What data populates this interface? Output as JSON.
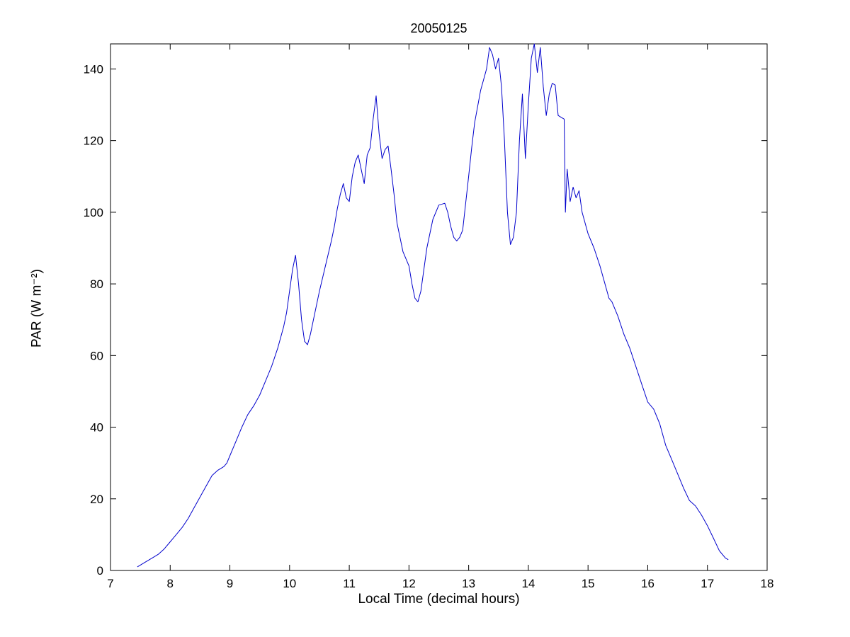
{
  "figure": {
    "background": "#ffffff",
    "axes_color": "#000000"
  },
  "chart_data": {
    "type": "line",
    "title": "20050125",
    "xlabel": "Local Time (decimal hours)",
    "ylabel": "PAR (W m⁻²)",
    "xlim": [
      7,
      18
    ],
    "ylim": [
      0,
      147
    ],
    "xticks": [
      7,
      8,
      9,
      10,
      11,
      12,
      13,
      14,
      15,
      16,
      17,
      18
    ],
    "yticks": [
      0,
      20,
      40,
      60,
      80,
      100,
      120,
      140
    ],
    "grid": false,
    "legend": null,
    "line_color": "#0000CC",
    "x": [
      7.45,
      7.5,
      7.6,
      7.7,
      7.8,
      7.9,
      8.0,
      8.1,
      8.2,
      8.3,
      8.4,
      8.5,
      8.6,
      8.7,
      8.8,
      8.9,
      8.95,
      9.0,
      9.1,
      9.2,
      9.3,
      9.4,
      9.5,
      9.6,
      9.7,
      9.8,
      9.9,
      9.95,
      10.0,
      10.05,
      10.1,
      10.15,
      10.2,
      10.25,
      10.3,
      10.35,
      10.4,
      10.5,
      10.6,
      10.7,
      10.75,
      10.8,
      10.85,
      10.9,
      10.95,
      11.0,
      11.05,
      11.1,
      11.15,
      11.2,
      11.25,
      11.3,
      11.35,
      11.4,
      11.45,
      11.5,
      11.55,
      11.6,
      11.65,
      11.7,
      11.75,
      11.8,
      11.9,
      12.0,
      12.05,
      12.1,
      12.15,
      12.2,
      12.3,
      12.4,
      12.5,
      12.6,
      12.65,
      12.7,
      12.75,
      12.8,
      12.85,
      12.9,
      13.0,
      13.05,
      13.1,
      13.2,
      13.25,
      13.3,
      13.35,
      13.4,
      13.45,
      13.5,
      13.55,
      13.6,
      13.65,
      13.7,
      13.75,
      13.8,
      13.85,
      13.9,
      13.95,
      14.0,
      14.05,
      14.1,
      14.15,
      14.2,
      14.25,
      14.3,
      14.35,
      14.4,
      14.45,
      14.5,
      14.55,
      14.6,
      14.62,
      14.65,
      14.7,
      14.75,
      14.8,
      14.85,
      14.9,
      15.0,
      15.1,
      15.2,
      15.3,
      15.35,
      15.4,
      15.5,
      15.6,
      15.7,
      15.8,
      15.9,
      16.0,
      16.1,
      16.2,
      16.3,
      16.4,
      16.5,
      16.6,
      16.7,
      16.8,
      16.9,
      17.0,
      17.1,
      17.2,
      17.3,
      17.35
    ],
    "y": [
      1,
      1.5,
      2.5,
      3.5,
      4.5,
      6,
      8,
      10,
      12,
      14.5,
      17.5,
      20.5,
      23.5,
      26.5,
      28,
      29,
      30,
      32,
      36,
      40,
      43.5,
      46,
      49,
      53,
      57,
      62,
      68,
      72,
      78,
      84,
      88,
      80,
      70,
      64,
      63,
      66,
      70,
      78,
      85,
      92,
      96,
      101,
      105,
      108,
      104,
      103,
      110,
      114,
      116,
      112,
      108,
      116,
      118,
      126,
      132.5,
      122,
      115,
      117.5,
      118.5,
      112,
      105,
      97,
      89,
      85,
      80,
      76,
      75,
      78,
      90,
      98,
      102,
      102.5,
      100,
      96,
      93,
      92,
      93,
      95,
      110,
      118,
      125,
      134,
      137,
      140,
      146,
      144,
      140,
      143,
      135,
      120,
      100,
      91,
      93,
      100,
      120,
      133,
      115,
      130,
      143,
      147,
      139,
      146,
      135,
      127,
      133,
      136,
      135.5,
      127,
      126.5,
      126,
      100,
      112,
      103,
      107,
      104,
      106,
      100,
      94,
      90,
      85,
      79,
      76,
      75,
      71,
      66,
      62,
      57,
      52,
      47,
      45,
      41,
      35,
      31,
      27,
      23,
      19.5,
      18,
      15.5,
      12.5,
      9,
      5.5,
      3.5,
      3
    ]
  }
}
